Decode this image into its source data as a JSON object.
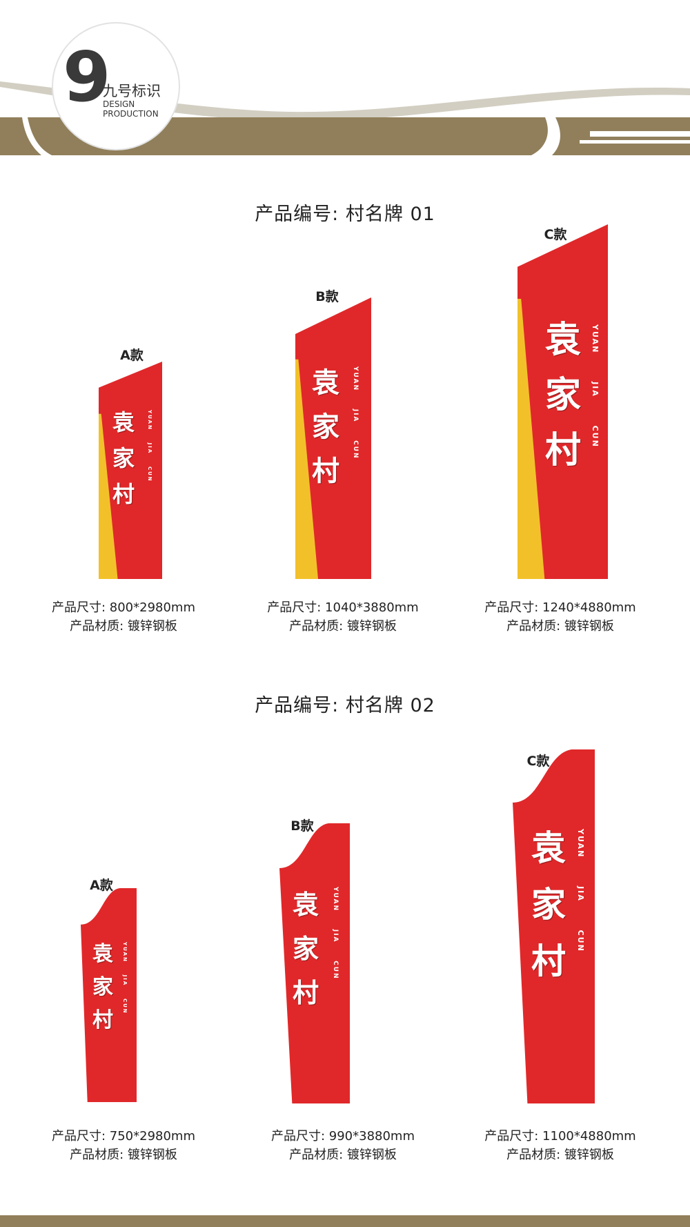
{
  "brand": {
    "mark": "9",
    "name": "九号标识",
    "line1": "DESIGN",
    "line2": "PRODUCTION"
  },
  "colors": {
    "band": "#917f5b",
    "band_dark": "#7d6b48",
    "wave": "#d2cec2",
    "red": "#e0282a",
    "yellow": "#f2c12a"
  },
  "sign_text": {
    "c1": "袁",
    "c2": "家",
    "c3": "村",
    "e1": "YUAN",
    "e2": "JIA",
    "e3": "CUN"
  },
  "sections": [
    {
      "title": "产品编号: 村名牌 01",
      "items": [
        {
          "label": "A款",
          "size": "产品尺寸: 800*2980mm",
          "material": "产品材质: 镀锌钢板"
        },
        {
          "label": "B款",
          "size": "产品尺寸: 1040*3880mm",
          "material": "产品材质: 镀锌钢板"
        },
        {
          "label": "C款",
          "size": "产品尺寸: 1240*4880mm",
          "material": "产品材质: 镀锌钢板"
        }
      ]
    },
    {
      "title": "产品编号: 村名牌 02",
      "items": [
        {
          "label": "A款",
          "size": "产品尺寸: 750*2980mm",
          "material": "产品材质: 镀锌钢板"
        },
        {
          "label": "B款",
          "size": "产品尺寸: 990*3880mm",
          "material": "产品材质: 镀锌钢板"
        },
        {
          "label": "C款",
          "size": "产品尺寸: 1100*4880mm",
          "material": "产品材质: 镀锌钢板"
        }
      ]
    }
  ]
}
